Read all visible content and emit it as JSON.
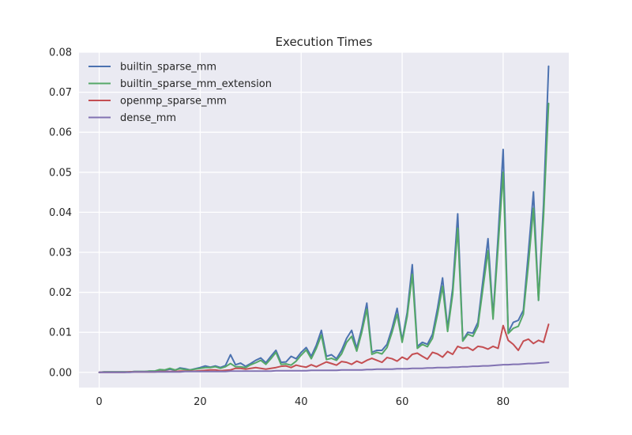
{
  "chart_data": {
    "type": "line",
    "title": "Execution Times",
    "xlabel": "",
    "ylabel": "",
    "xlim": [
      -4,
      93
    ],
    "ylim": [
      -0.0038,
      0.08
    ],
    "xticks": [
      0,
      20,
      40,
      60,
      80
    ],
    "yticks": [
      0.0,
      0.01,
      0.02,
      0.03,
      0.04,
      0.05,
      0.06,
      0.07,
      0.08
    ],
    "ytick_labels": [
      "0.00",
      "0.01",
      "0.02",
      "0.03",
      "0.04",
      "0.05",
      "0.06",
      "0.07",
      "0.08"
    ],
    "xtick_labels": [
      "0",
      "20",
      "40",
      "60",
      "80"
    ],
    "grid": true,
    "legend_position": "top-left",
    "background": "#eaeaf2",
    "series": [
      {
        "name": "builtin_sparse_mm",
        "color": "#4c72b0",
        "values": [
          0.0,
          0.0001,
          0.0001,
          0.0001,
          0.0001,
          0.0001,
          0.0001,
          0.0002,
          0.0002,
          0.0002,
          0.0003,
          0.0003,
          0.0006,
          0.0005,
          0.0008,
          0.0005,
          0.0011,
          0.0009,
          0.0006,
          0.0009,
          0.0012,
          0.0016,
          0.0013,
          0.0016,
          0.0012,
          0.0017,
          0.0044,
          0.0019,
          0.0023,
          0.0015,
          0.0022,
          0.003,
          0.0036,
          0.0024,
          0.004,
          0.0055,
          0.0025,
          0.0026,
          0.004,
          0.0034,
          0.005,
          0.0062,
          0.004,
          0.0068,
          0.0105,
          0.004,
          0.0044,
          0.0034,
          0.0055,
          0.0085,
          0.0105,
          0.006,
          0.011,
          0.0173,
          0.005,
          0.0055,
          0.0055,
          0.007,
          0.011,
          0.016,
          0.008,
          0.015,
          0.0269,
          0.0065,
          0.0075,
          0.007,
          0.0095,
          0.016,
          0.0236,
          0.011,
          0.021,
          0.0396,
          0.008,
          0.01,
          0.0098,
          0.0125,
          0.023,
          0.0334,
          0.014,
          0.034,
          0.0557,
          0.01,
          0.0125,
          0.013,
          0.0155,
          0.03,
          0.0451,
          0.018,
          0.042,
          0.0765
        ]
      },
      {
        "name": "builtin_sparse_mm_extension",
        "color": "#55a868",
        "values": [
          0.0,
          0.0001,
          0.0001,
          0.0001,
          0.0001,
          0.0001,
          0.0001,
          0.0002,
          0.0002,
          0.0002,
          0.0003,
          0.0003,
          0.0007,
          0.0006,
          0.001,
          0.0006,
          0.0009,
          0.0007,
          0.0006,
          0.0008,
          0.001,
          0.0012,
          0.0012,
          0.0014,
          0.001,
          0.0014,
          0.0022,
          0.0014,
          0.0014,
          0.0012,
          0.0019,
          0.0024,
          0.003,
          0.002,
          0.0034,
          0.005,
          0.002,
          0.0021,
          0.0018,
          0.0028,
          0.0043,
          0.0056,
          0.0034,
          0.006,
          0.0093,
          0.0032,
          0.0035,
          0.003,
          0.0046,
          0.0075,
          0.009,
          0.0053,
          0.01,
          0.0158,
          0.0045,
          0.005,
          0.0046,
          0.0062,
          0.01,
          0.0145,
          0.0075,
          0.014,
          0.0245,
          0.006,
          0.007,
          0.0064,
          0.0085,
          0.0145,
          0.0215,
          0.0102,
          0.0195,
          0.036,
          0.0078,
          0.0095,
          0.009,
          0.0115,
          0.021,
          0.0304,
          0.0133,
          0.0315,
          0.05,
          0.0097,
          0.011,
          0.0115,
          0.0145,
          0.027,
          0.041,
          0.018,
          0.039,
          0.0672
        ]
      },
      {
        "name": "openmp_sparse_mm",
        "color": "#c44e52",
        "values": [
          0.0,
          0.0,
          0.0,
          0.0,
          0.0,
          0.0,
          0.0001,
          0.0001,
          0.0001,
          0.0001,
          0.0001,
          0.0001,
          0.0002,
          0.0002,
          0.0002,
          0.0002,
          0.0003,
          0.0003,
          0.0003,
          0.0003,
          0.0004,
          0.0005,
          0.0006,
          0.0006,
          0.0004,
          0.0005,
          0.0006,
          0.001,
          0.001,
          0.0008,
          0.001,
          0.0012,
          0.001,
          0.0008,
          0.001,
          0.0012,
          0.0015,
          0.0016,
          0.0012,
          0.0018,
          0.0015,
          0.0013,
          0.0019,
          0.0014,
          0.002,
          0.0026,
          0.0022,
          0.0018,
          0.0027,
          0.0025,
          0.002,
          0.0028,
          0.0023,
          0.003,
          0.0035,
          0.003,
          0.0025,
          0.0037,
          0.0034,
          0.0028,
          0.0038,
          0.0032,
          0.0045,
          0.0048,
          0.004,
          0.0033,
          0.005,
          0.0046,
          0.0038,
          0.0052,
          0.0045,
          0.0065,
          0.006,
          0.0062,
          0.0055,
          0.0065,
          0.0063,
          0.0058,
          0.0065,
          0.006,
          0.0117,
          0.008,
          0.007,
          0.0055,
          0.0078,
          0.0083,
          0.0072,
          0.008,
          0.0075,
          0.012
        ]
      },
      {
        "name": "dense_mm",
        "color": "#8172b2",
        "values": [
          0.0,
          0.0,
          0.0,
          0.0,
          0.0,
          0.0,
          0.0,
          0.0001,
          0.0001,
          0.0001,
          0.0001,
          0.0001,
          0.0001,
          0.0001,
          0.0001,
          0.0001,
          0.0001,
          0.0002,
          0.0002,
          0.0002,
          0.0002,
          0.0002,
          0.0002,
          0.0002,
          0.0002,
          0.0002,
          0.0003,
          0.0003,
          0.0003,
          0.0003,
          0.0003,
          0.0003,
          0.0003,
          0.0003,
          0.0003,
          0.0004,
          0.0004,
          0.0004,
          0.0004,
          0.0004,
          0.0004,
          0.0004,
          0.0005,
          0.0005,
          0.0005,
          0.0005,
          0.0005,
          0.0005,
          0.0006,
          0.0006,
          0.0006,
          0.0006,
          0.0006,
          0.0007,
          0.0007,
          0.0008,
          0.0008,
          0.0008,
          0.0008,
          0.0009,
          0.0009,
          0.0009,
          0.001,
          0.001,
          0.001,
          0.0011,
          0.0011,
          0.0012,
          0.0012,
          0.0012,
          0.0013,
          0.0013,
          0.0014,
          0.0014,
          0.0015,
          0.0015,
          0.0016,
          0.0016,
          0.0017,
          0.0018,
          0.0019,
          0.0019,
          0.002,
          0.002,
          0.0021,
          0.0022,
          0.0022,
          0.0023,
          0.0024,
          0.0025
        ]
      }
    ]
  }
}
